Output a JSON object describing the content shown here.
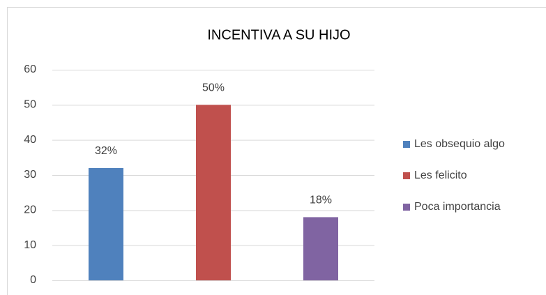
{
  "chart_data": {
    "type": "bar",
    "title": "INCENTIVA A SU HIJO",
    "ylim": [
      0,
      60
    ],
    "yticks": [
      0,
      10,
      20,
      30,
      40,
      50,
      60
    ],
    "grid": true,
    "legend": "right",
    "series": [
      {
        "name": "Les obsequio algo",
        "color": "#4f81bd",
        "values": [
          32
        ],
        "value_labels": [
          "32%"
        ]
      },
      {
        "name": "Les felicito",
        "color": "#c0504d",
        "values": [
          50
        ],
        "value_labels": [
          "50%"
        ]
      },
      {
        "name": "Poca importancia",
        "color": "#8064a2",
        "values": [
          18
        ],
        "value_labels": [
          "18%"
        ]
      }
    ]
  }
}
